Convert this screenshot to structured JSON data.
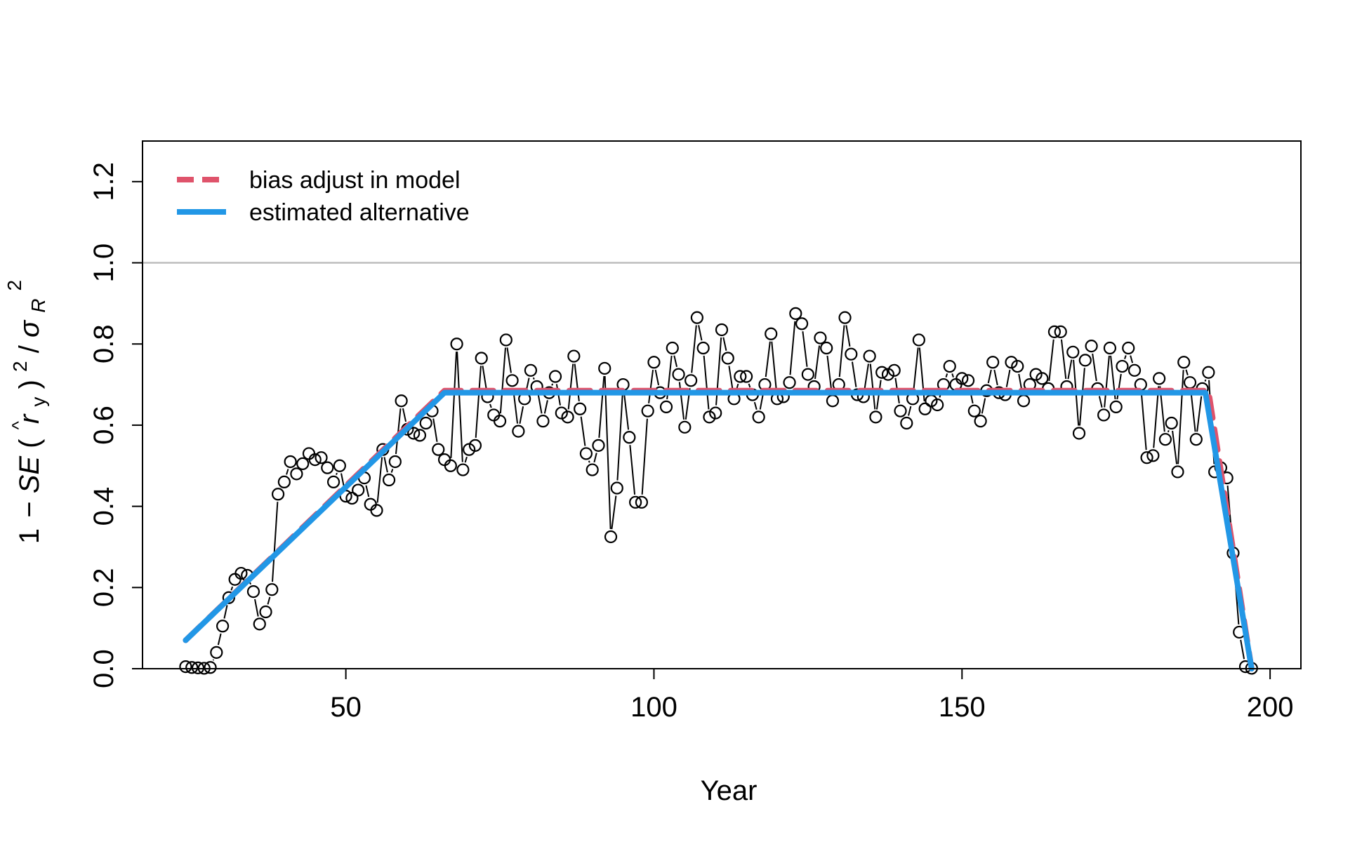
{
  "chart_data": {
    "type": "line",
    "title": "",
    "xlabel": "Year",
    "ylabel": "1 − SE(r̂y)² / σR²",
    "ylabel_parts": {
      "one": "1",
      "minus": "−",
      "se": "SE",
      "open": "(",
      "r": "r",
      "hat": "^",
      "y": "y",
      "close": ")",
      "sq": "2",
      "slash": "/",
      "sigma": "σ",
      "R": "R",
      "sq2": "2"
    },
    "xlim": [
      17,
      205
    ],
    "ylim": [
      0,
      1.3
    ],
    "x_ticks": [
      50,
      100,
      150,
      200
    ],
    "x_tick_labels": [
      "50",
      "100",
      "150",
      "200"
    ],
    "y_ticks": [
      0,
      0.2,
      0.4,
      0.6,
      0.8,
      1.0,
      1.2
    ],
    "y_tick_labels": [
      "0.0",
      "0.2",
      "0.4",
      "0.6",
      "0.8",
      "1.0",
      "1.2"
    ],
    "reference_line": {
      "y": 1.0,
      "color": "#BEBEBE"
    },
    "legend": {
      "position": "top-left",
      "entries": [
        {
          "label": "bias adjust in model",
          "color": "#DF536B",
          "style": "dashed"
        },
        {
          "label": "estimated alternative",
          "color": "#2297E6",
          "style": "solid"
        }
      ]
    },
    "series": [
      {
        "name": "bias adjust in model",
        "color": "#DF536B",
        "style": "dashed",
        "x": [
          24,
          66,
          190,
          197
        ],
        "y": [
          0.07,
          0.685,
          0.685,
          0.0
        ]
      },
      {
        "name": "estimated alternative",
        "color": "#2297E6",
        "style": "solid",
        "x": [
          24,
          66,
          189.5,
          197
        ],
        "y": [
          0.07,
          0.68,
          0.68,
          0.0
        ]
      },
      {
        "name": "",
        "color": "#000000",
        "style": "points-and-lines",
        "x": [
          24,
          25,
          26,
          27,
          28,
          29,
          30,
          31,
          32,
          33,
          34,
          35,
          36,
          37,
          38,
          39,
          40,
          41,
          42,
          43,
          44,
          45,
          46,
          47,
          48,
          49,
          50,
          51,
          52,
          53,
          54,
          55,
          56,
          57,
          58,
          59,
          60,
          61,
          62,
          63,
          64,
          65,
          66,
          67,
          68,
          69,
          70,
          71,
          72,
          73,
          74,
          75,
          76,
          77,
          78,
          79,
          80,
          81,
          82,
          83,
          84,
          85,
          86,
          87,
          88,
          89,
          90,
          91,
          92,
          93,
          94,
          95,
          96,
          97,
          98,
          99,
          100,
          101,
          102,
          103,
          104,
          105,
          106,
          107,
          108,
          109,
          110,
          111,
          112,
          113,
          114,
          115,
          116,
          117,
          118,
          119,
          120,
          121,
          122,
          123,
          124,
          125,
          126,
          127,
          128,
          129,
          130,
          131,
          132,
          133,
          134,
          135,
          136,
          137,
          138,
          139,
          140,
          141,
          142,
          143,
          144,
          145,
          146,
          147,
          148,
          149,
          150,
          151,
          152,
          153,
          154,
          155,
          156,
          157,
          158,
          159,
          160,
          161,
          162,
          163,
          164,
          165,
          166,
          167,
          168,
          169,
          170,
          171,
          172,
          173,
          174,
          175,
          176,
          177,
          178,
          179,
          180,
          181,
          182,
          183,
          184,
          185,
          186,
          187,
          188,
          189,
          190,
          191,
          192,
          193,
          194,
          195,
          196,
          197
        ],
        "y": [
          0.005,
          0.003,
          0.002,
          0.001,
          0.003,
          0.04,
          0.105,
          0.175,
          0.22,
          0.235,
          0.23,
          0.19,
          0.11,
          0.14,
          0.195,
          0.43,
          0.46,
          0.51,
          0.48,
          0.505,
          0.53,
          0.515,
          0.52,
          0.495,
          0.46,
          0.5,
          0.425,
          0.42,
          0.44,
          0.47,
          0.405,
          0.39,
          0.54,
          0.465,
          0.51,
          0.66,
          0.59,
          0.58,
          0.575,
          0.605,
          0.635,
          0.54,
          0.515,
          0.5,
          0.8,
          0.49,
          0.54,
          0.55,
          0.765,
          0.67,
          0.625,
          0.61,
          0.81,
          0.71,
          0.585,
          0.665,
          0.735,
          0.695,
          0.61,
          0.68,
          0.72,
          0.63,
          0.62,
          0.77,
          0.64,
          0.53,
          0.49,
          0.55,
          0.74,
          0.325,
          0.445,
          0.7,
          0.57,
          0.41,
          0.41,
          0.635,
          0.755,
          0.68,
          0.645,
          0.79,
          0.725,
          0.595,
          0.71,
          0.865,
          0.79,
          0.62,
          0.63,
          0.835,
          0.765,
          0.665,
          0.72,
          0.72,
          0.675,
          0.62,
          0.7,
          0.825,
          0.665,
          0.67,
          0.705,
          0.875,
          0.85,
          0.725,
          0.695,
          0.815,
          0.79,
          0.66,
          0.7,
          0.865,
          0.775,
          0.675,
          0.67,
          0.77,
          0.62,
          0.73,
          0.725,
          0.735,
          0.635,
          0.605,
          0.665,
          0.81,
          0.64,
          0.66,
          0.65,
          0.7,
          0.745,
          0.7,
          0.715,
          0.71,
          0.635,
          0.61,
          0.685,
          0.755,
          0.68,
          0.675,
          0.755,
          0.745,
          0.66,
          0.7,
          0.725,
          0.715,
          0.69,
          0.83,
          0.83,
          0.695,
          0.78,
          0.58,
          0.76,
          0.795,
          0.69,
          0.625,
          0.79,
          0.645,
          0.745,
          0.79,
          0.735,
          0.7,
          0.52,
          0.525,
          0.715,
          0.565,
          0.605,
          0.485,
          0.755,
          0.705,
          0.565,
          0.69,
          0.73,
          0.485,
          0.495,
          0.47,
          0.285,
          0.09,
          0.005,
          0.001
        ]
      }
    ]
  }
}
